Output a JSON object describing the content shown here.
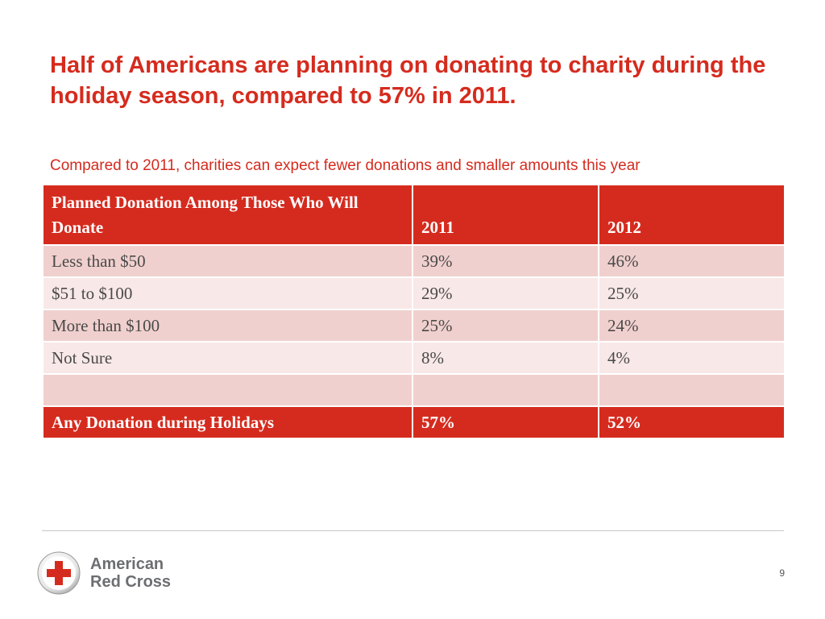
{
  "slide": {
    "title": "Half of Americans are planning on donating to charity during the holiday season, compared to 57% in 2011.",
    "subtitle": "Compared to 2011, charities can expect fewer donations and smaller amounts this year",
    "page_number": "9"
  },
  "table": {
    "headers": [
      "Planned Donation Among Those Who Will Donate",
      "2011",
      "2012"
    ],
    "rows": [
      [
        "Less than $50",
        "39%",
        "46%"
      ],
      [
        "$51 to $100",
        "29%",
        "25%"
      ],
      [
        "More than $100",
        "25%",
        "24%"
      ],
      [
        "Not Sure",
        "8%",
        "4%"
      ],
      [
        "",
        "",
        ""
      ]
    ],
    "total_row": [
      "Any Donation  during Holidays",
      "57%",
      "52%"
    ]
  },
  "logo": {
    "icon": "red-cross-icon",
    "line1": "American",
    "line2": "Red Cross"
  },
  "colors": {
    "brand_red": "#d52b1e",
    "row_band_dark": "#f0d0ce",
    "row_band_light": "#f8e8e7",
    "logo_gray": "#6d6e71"
  }
}
